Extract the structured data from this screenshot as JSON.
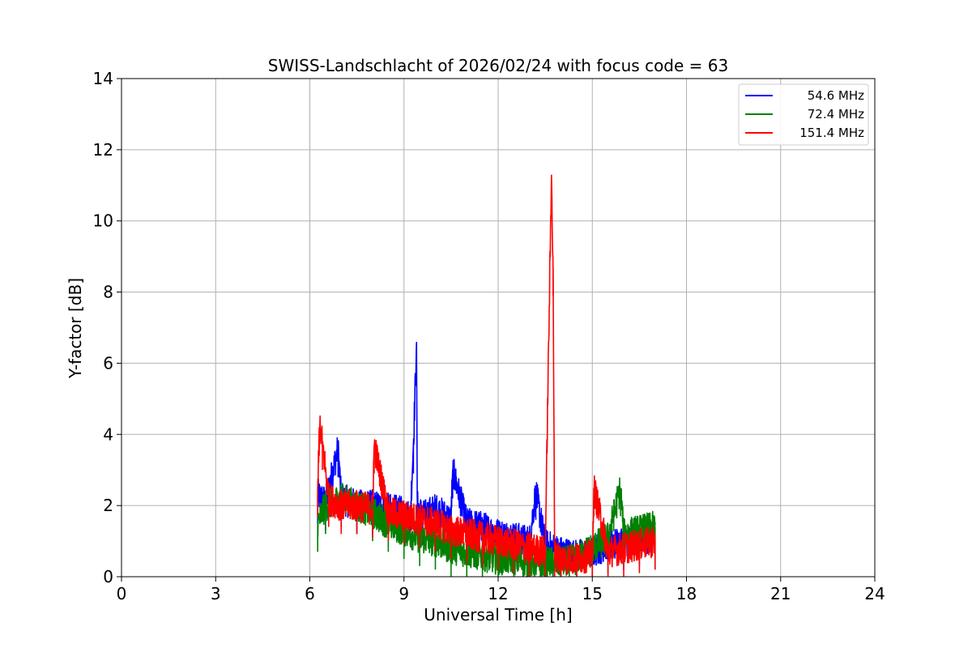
{
  "chart_data": {
    "type": "line",
    "title": "SWISS-Landschlacht of 2026/02/24 with focus code = 63",
    "xlabel": "Universal Time [h]",
    "ylabel": "Y-factor [dB]",
    "xlim": [
      0,
      24
    ],
    "ylim": [
      0,
      14
    ],
    "xticks": [
      0,
      3,
      6,
      9,
      12,
      15,
      18,
      21,
      24
    ],
    "yticks": [
      0,
      2,
      4,
      6,
      8,
      10,
      12,
      14
    ],
    "grid": true,
    "legend_position": "top-right",
    "series": [
      {
        "name": "54.6 MHz",
        "color": "#0000ff",
        "x": [
          6.25,
          6.5,
          6.9,
          7.0,
          7.5,
          8.0,
          8.5,
          9.0,
          9.2,
          9.3,
          9.4,
          9.42,
          9.6,
          10.0,
          10.5,
          10.55,
          11.0,
          11.5,
          12.0,
          12.5,
          13.0,
          13.2,
          13.5,
          14.0,
          14.5,
          15.0,
          15.5,
          16.0,
          16.5,
          17.0
        ],
        "values": [
          2.3,
          2.1,
          3.6,
          2.2,
          2.0,
          2.0,
          1.9,
          1.8,
          1.7,
          3.7,
          6.6,
          2.0,
          1.7,
          1.9,
          1.6,
          3.0,
          1.5,
          1.4,
          1.2,
          1.1,
          1.0,
          2.4,
          0.9,
          0.7,
          0.6,
          0.7,
          0.9,
          1.0,
          1.1,
          1.0
        ]
      },
      {
        "name": "72.4 MHz",
        "color": "#008000",
        "x": [
          6.25,
          6.5,
          7.0,
          7.5,
          8.0,
          8.5,
          9.0,
          9.5,
          10.0,
          10.5,
          11.0,
          11.5,
          12.0,
          12.5,
          13.0,
          13.5,
          14.0,
          14.5,
          15.0,
          15.5,
          15.9,
          16.0,
          16.5,
          17.0
        ],
        "values": [
          1.5,
          2.0,
          2.2,
          2.0,
          1.8,
          1.5,
          1.3,
          1.1,
          1.0,
          0.8,
          0.7,
          0.6,
          0.5,
          0.5,
          0.4,
          0.4,
          0.4,
          0.5,
          0.8,
          1.1,
          2.5,
          1.2,
          1.3,
          1.4
        ]
      },
      {
        "name": "151.4 MHz",
        "color": "#ff0000",
        "x": [
          6.25,
          6.3,
          6.4,
          6.6,
          7.0,
          7.5,
          8.0,
          8.05,
          8.5,
          9.0,
          9.5,
          10.0,
          10.5,
          11.0,
          11.5,
          12.0,
          12.5,
          13.0,
          13.5,
          13.7,
          13.75,
          13.8,
          14.0,
          14.5,
          15.0,
          15.05,
          15.5,
          16.0,
          16.5,
          17.0
        ],
        "values": [
          2.5,
          4.2,
          3.8,
          2.2,
          2.0,
          2.0,
          1.9,
          3.7,
          1.8,
          1.7,
          1.6,
          1.5,
          1.3,
          1.2,
          1.1,
          1.0,
          0.9,
          0.8,
          0.7,
          11.3,
          8.7,
          0.6,
          0.5,
          0.5,
          0.6,
          2.5,
          0.7,
          0.8,
          0.9,
          1.0
        ]
      }
    ]
  }
}
